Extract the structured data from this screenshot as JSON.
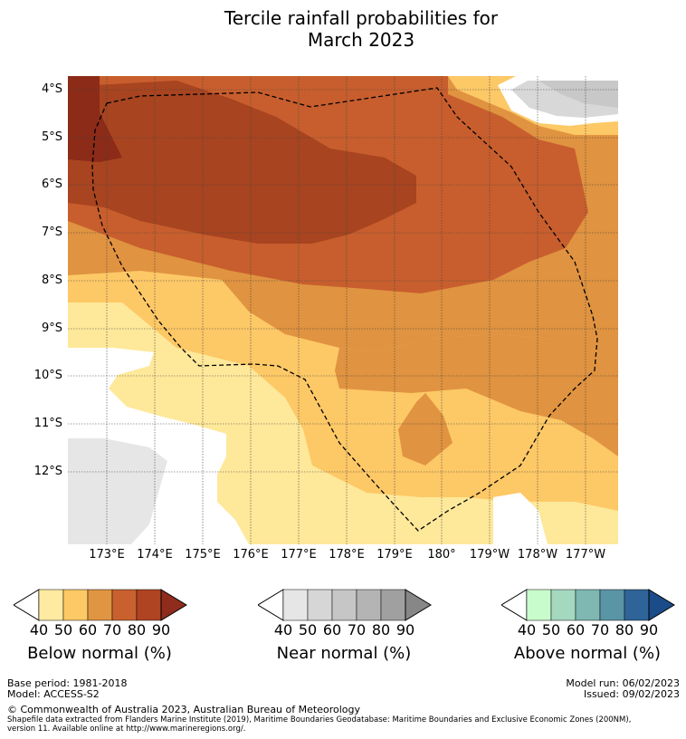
{
  "title_line1": "Tercile rainfall probabilities for",
  "title_line2": "March 2023",
  "map": {
    "lat_labels": [
      "4°S",
      "5°S",
      "6°S",
      "7°S",
      "8°S",
      "9°S",
      "10°S",
      "11°S",
      "12°S"
    ],
    "lon_labels": [
      "173°E",
      "174°E",
      "175°E",
      "176°E",
      "177°E",
      "178°E",
      "179°E",
      "180°",
      "179°W",
      "178°W",
      "177°W"
    ],
    "colors": {
      "below": [
        "#fbf0b5",
        "#fee89a",
        "#fdc866",
        "#e09340",
        "#c85e2d",
        "#a84420",
        "#8b2b18"
      ],
      "near": [
        "#e6e6e6",
        "#d8d8d8",
        "#c8c8c8"
      ],
      "white": "#ffffff",
      "eez_line": "#000000"
    }
  },
  "legends": [
    {
      "title": "Below normal (%)",
      "ticks": [
        "40",
        "50",
        "60",
        "70",
        "80",
        "90"
      ],
      "colors": [
        "#ffffff",
        "#feeaa0",
        "#fdc966",
        "#e09542",
        "#c9612f",
        "#ae4422",
        "#8f2c1c"
      ]
    },
    {
      "title": "Near normal (%)",
      "ticks": [
        "40",
        "50",
        "60",
        "70",
        "80",
        "90"
      ],
      "colors": [
        "#ffffff",
        "#e6e6e6",
        "#d6d6d6",
        "#c6c6c6",
        "#b4b4b4",
        "#a0a0a0",
        "#878787"
      ]
    },
    {
      "title": "Above normal (%)",
      "ticks": [
        "40",
        "50",
        "60",
        "70",
        "80",
        "90"
      ],
      "colors": [
        "#ffffff",
        "#c9fccc",
        "#a4d9c0",
        "#7fb7b2",
        "#5a95a6",
        "#2e6497",
        "#1b4c89"
      ]
    }
  ],
  "footer": {
    "base_period": "Base period: 1981-2018",
    "model": "Model: ACCESS-S2",
    "model_run": "Model run: 06/02/2023",
    "issued": "Issued: 09/02/2023",
    "copyright": "© Commonwealth of Australia 2023, Australian Bureau of Meteorology",
    "shapefile_line1": "Shapefile data extracted from Flanders Marine Institute (2019), Maritime Boundaries Geodatabase: Maritime Boundaries and Exclusive Economic Zones (200NM),",
    "shapefile_line2": "version 11. Available online at http://www.marineregions.org/."
  }
}
